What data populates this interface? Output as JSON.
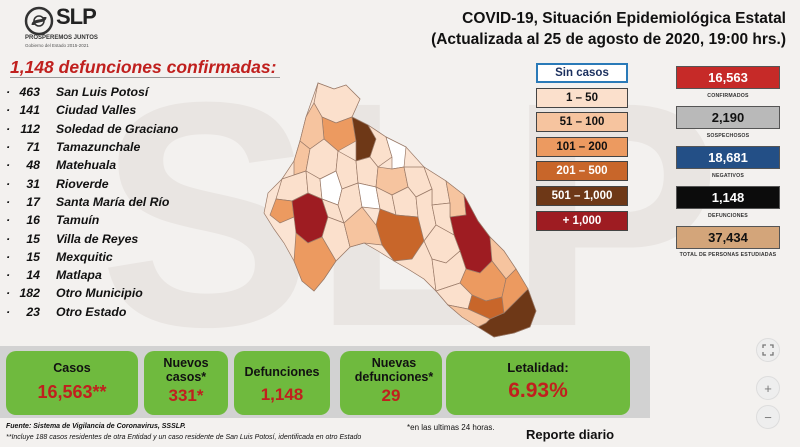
{
  "header": {
    "logo_text": "SLP",
    "logo_slogan": "PROSPEREMOS JUNTOS",
    "logo_sub": "Gobierno del Estado 2015-2021",
    "title_line1": "COVID-19, Situación Epidemiológica Estatal",
    "title_line2": "(Actualizada al 25 de agosto de 2020, 19:00 hrs.)"
  },
  "deaths_title": "1,148 defunciones confirmadas:",
  "municipalities": [
    {
      "count": "463",
      "name": "San Luis Potosí"
    },
    {
      "count": "141",
      "name": "Ciudad Valles"
    },
    {
      "count": "112",
      "name": "Soledad de Graciano"
    },
    {
      "count": "71",
      "name": "Tamazunchale"
    },
    {
      "count": "48",
      "name": "Matehuala"
    },
    {
      "count": "31",
      "name": "Rioverde"
    },
    {
      "count": "17",
      "name": "Santa María del Río"
    },
    {
      "count": "16",
      "name": "Tamuín"
    },
    {
      "count": "15",
      "name": "Villa de Reyes"
    },
    {
      "count": "15",
      "name": "Mexquitic"
    },
    {
      "count": "14",
      "name": "Matlapa"
    },
    {
      "count": "182",
      "name": "Otro Municipio"
    },
    {
      "count": "23",
      "name": "Otro Estado"
    }
  ],
  "legend": [
    {
      "label": "Sin casos",
      "color": "#ffffff",
      "text_color": "#1a2f5e",
      "border": "#2a7ab8"
    },
    {
      "label": "1 – 50",
      "color": "#fbe0cc",
      "text_color": "#111111",
      "border": "#444444"
    },
    {
      "label": "51 – 100",
      "color": "#f6c49f",
      "text_color": "#111111",
      "border": "#444444"
    },
    {
      "label": "101 – 200",
      "color": "#ec9a60",
      "text_color": "#111111",
      "border": "#444444"
    },
    {
      "label": "201 – 500",
      "color": "#c8662a",
      "text_color": "#ffffff",
      "border": "#444444"
    },
    {
      "label": "501 – 1,000",
      "color": "#6e3817",
      "text_color": "#ffffff",
      "border": "#444444"
    },
    {
      "label": "+ 1,000",
      "color": "#9e1c22",
      "text_color": "#ffffff",
      "border": "#444444"
    }
  ],
  "stats": [
    {
      "value": "16,563",
      "label": "CONFIRMADOS",
      "color": "#c62a28",
      "text_color": "#ffffff"
    },
    {
      "value": "2,190",
      "label": "SOSPECHOSOS",
      "color": "#b9b9b9",
      "text_color": "#111111"
    },
    {
      "value": "18,681",
      "label": "NEGATIVOS",
      "color": "#234f86",
      "text_color": "#ffffff"
    },
    {
      "value": "1,148",
      "label": "DEFUNCIONES",
      "color": "#0c0c0c",
      "text_color": "#ffffff"
    },
    {
      "value": "37,434",
      "label": "TOTAL DE PERSONAS ESTUDIADAS",
      "color": "#d3a57a",
      "text_color": "#111111"
    }
  ],
  "summary": {
    "casos": {
      "label": "Casos",
      "value": "16,563**"
    },
    "nuevos_casos": {
      "label": "Nuevos casos*",
      "value": "331*"
    },
    "defunciones": {
      "label": "Defunciones",
      "value": "1,148"
    },
    "nuevas_defunciones": {
      "label": "Nuevas defunciones*",
      "value": "29"
    },
    "letalidad": {
      "label": "Letalidad:",
      "value": "6.93%"
    }
  },
  "footer": {
    "fuente": "Fuente: Sistema de Vigilancia de Coronavirus, SSSLP.",
    "nota_asterisco": "*en las ultimas 24 horas.",
    "nota_doble": "**Incluye 188 casos residentes de otra Entidad y un caso residente de San Luis Potosí, identificada en otro Estado",
    "reporte": "Reporte diario"
  },
  "map_controls": {
    "zoom_in": "+",
    "zoom_out": "−"
  },
  "watermark_text": "SLP"
}
